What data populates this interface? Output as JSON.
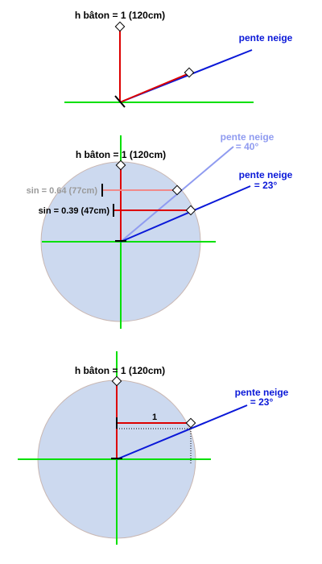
{
  "colors": {
    "green": "#00e000",
    "red": "#dd0000",
    "blue": "#0a18d8",
    "light_blue": "#8f9bf0",
    "circle_fill": "#ccd9ef",
    "circle_stroke": "#c9b7b2",
    "pink": "#f08a8a",
    "gray_text": "#9a9a9a",
    "black": "#000000"
  },
  "panel1": {
    "baton_label": "h bâton = 1 (120cm)",
    "slope_label": "pente neige"
  },
  "panel2": {
    "baton_label": "h bâton = 1 (120cm)",
    "slope40_line1": "pente neige",
    "slope40_line2": "= 40°",
    "slope23_line1": "pente neige",
    "slope23_line2": "= 23°",
    "sin40_label": "sin = 0.64 (77cm)",
    "sin23_label": "sin = 0.39 (47cm)"
  },
  "panel3": {
    "baton_label": "h bâton = 1 (120cm)",
    "slope23_line1": "pente neige",
    "slope23_line2": "= 23°",
    "unit_label": "1"
  }
}
